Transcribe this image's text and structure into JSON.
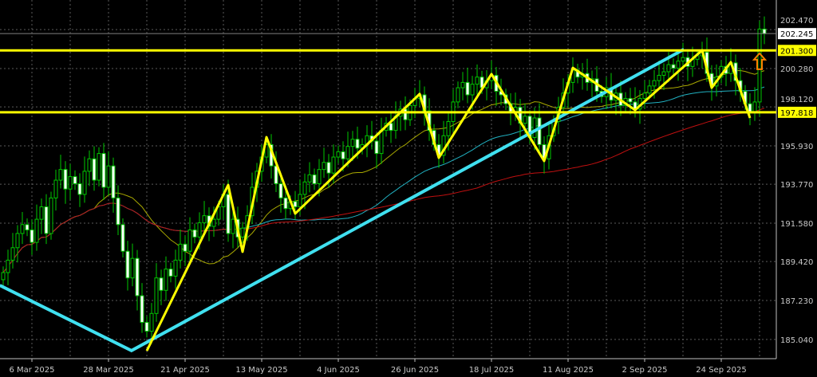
{
  "chart_data": {
    "type": "candlestick",
    "background": "#000000",
    "grid": true,
    "ylim": [
      184.3,
      203.2
    ],
    "y_ticks": [
      "202.470",
      "200.280",
      "198.120",
      "195.930",
      "193.770",
      "191.580",
      "189.420",
      "187.230",
      "185.040"
    ],
    "x_ticks": [
      {
        "bar": 6,
        "label": "6 Mar 2025"
      },
      {
        "bar": 22,
        "label": "28 Mar 2025"
      },
      {
        "bar": 38,
        "label": "21 Apr 2025"
      },
      {
        "bar": 54,
        "label": "13 May 2025"
      },
      {
        "bar": 70,
        "label": "4 Jun 2025"
      },
      {
        "bar": 86,
        "label": "26 Jun 2025"
      },
      {
        "bar": 102,
        "label": "18 Jul 2025"
      },
      {
        "bar": 118,
        "label": "11 Aug 2025"
      },
      {
        "bar": 134,
        "label": "2 Sep 2025"
      },
      {
        "bar": 150,
        "label": "24 Sep 2025"
      }
    ],
    "closes": [
      188.8,
      189.5,
      190.2,
      191.0,
      191.5,
      191.2,
      190.5,
      191.8,
      192.5,
      191.0,
      193.0,
      194.0,
      194.6,
      193.5,
      194.2,
      193.8,
      193.2,
      194.5,
      195.2,
      194.0,
      195.5,
      193.6,
      194.8,
      193.0,
      191.5,
      190.0,
      188.5,
      189.6,
      187.5,
      186.0,
      185.5,
      186.5,
      188.5,
      187.8,
      189.0,
      188.6,
      189.5,
      190.4,
      190.0,
      191.2,
      190.8,
      191.6,
      192.0,
      191.4,
      191.8,
      192.5,
      193.2,
      191.0,
      191.8,
      190.8,
      191.3,
      192.0,
      193.6,
      194.5,
      195.3,
      196.0,
      194.8,
      193.8,
      193.0,
      192.4,
      192.8,
      192.5,
      193.2,
      193.9,
      194.3,
      193.8,
      194.6,
      195.0,
      194.4,
      195.3,
      195.6,
      195.2,
      195.9,
      196.3,
      195.8,
      196.0,
      196.5,
      196.2,
      195.5,
      196.8,
      197.2,
      196.8,
      197.6,
      198.0,
      197.4,
      198.2,
      198.6,
      198.8,
      197.9,
      196.8,
      196.0,
      195.4,
      196.5,
      197.3,
      198.4,
      199.2,
      199.5,
      198.8,
      199.4,
      199.8,
      199.2,
      199.6,
      199.9,
      199.0,
      198.8,
      198.3,
      197.8,
      198.1,
      197.2,
      197.6,
      196.4,
      197.5,
      196.0,
      195.2,
      196.5,
      197.3,
      198.1,
      198.9,
      199.5,
      200.2,
      199.8,
      200.0,
      199.5,
      199.7,
      199.0,
      198.7,
      199.2,
      198.5,
      198.9,
      198.2,
      198.6,
      198.4,
      198.0,
      198.6,
      198.9,
      199.3,
      199.6,
      199.9,
      200.1,
      200.5,
      200.3,
      200.7,
      200.9,
      200.4,
      200.8,
      201.0,
      201.2,
      200.0,
      199.3,
      199.8,
      200.4,
      200.0,
      200.6,
      199.6,
      199.0,
      198.3,
      197.8,
      198.4,
      202.5,
      202.245
    ],
    "candle_colors": {
      "outline": "#00c800",
      "bull_body": "#000000",
      "bear_body": "#ffffff"
    },
    "moving_averages": [
      {
        "period": 20,
        "color": "#a8a800"
      },
      {
        "period": 50,
        "color": "#20b0c0"
      },
      {
        "period": 100,
        "color": "#c01010"
      }
    ],
    "horizontal_lines": [
      {
        "price": 201.3,
        "label": "201.300",
        "color": "#ffff00"
      },
      {
        "price": 197.818,
        "label": "197.818",
        "color": "#ffff00"
      }
    ],
    "current_price": {
      "price": 202.245,
      "label": "202.245",
      "color": "#ffffff"
    },
    "trendlines": [
      {
        "color": "#40e0f0",
        "points": [
          [
            -0.7,
            188.08
          ],
          [
            26.8,
            184.41
          ],
          [
            142.2,
            201.36
          ]
        ]
      }
    ],
    "zigzag": {
      "color": "#ffff00",
      "points": [
        [
          30,
          184.4
        ],
        [
          47,
          193.73
        ],
        [
          50,
          189.97
        ],
        [
          55,
          196.42
        ],
        [
          61,
          192.12
        ],
        [
          87,
          198.85
        ],
        [
          91,
          195.26
        ],
        [
          102,
          199.97
        ],
        [
          113,
          195.08
        ],
        [
          119,
          200.32
        ],
        [
          132,
          197.95
        ],
        [
          146,
          201.31
        ],
        [
          148,
          199.2
        ],
        [
          152,
          200.64
        ],
        [
          156,
          197.5
        ]
      ]
    },
    "arrow": {
      "bar": 158,
      "price": 200.6,
      "direction": "up",
      "color": "#ff8000"
    }
  }
}
